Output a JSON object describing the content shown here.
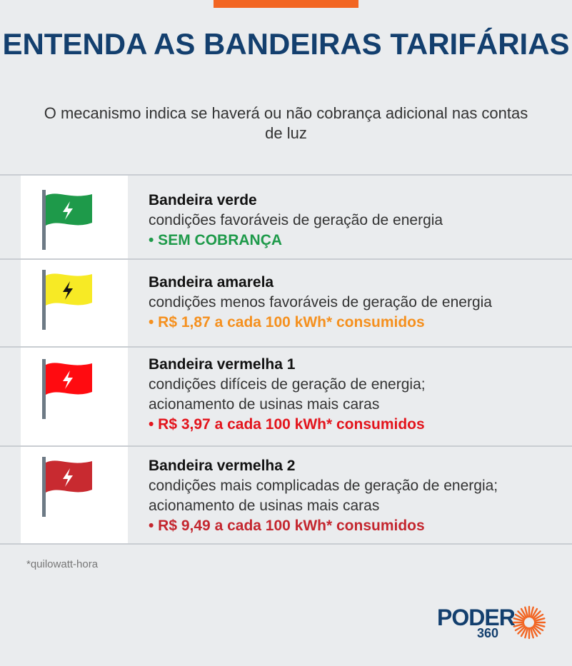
{
  "header": {
    "accent_color": "#f26522",
    "title": "ENTENDA AS BANDEIRAS TARIFÁRIAS",
    "subtitle": "O mecanismo indica se haverá ou não cobrança adicional nas contas de luz"
  },
  "rows": [
    {
      "name": "Bandeira verde",
      "description": "condições favoráveis de geração de energia",
      "cost": "• SEM COBRANÇA",
      "flag_color": "#1e9a4a",
      "bolt_color": "#ffffff",
      "cost_color": "#1e9a4a",
      "icon": "green-flag-icon"
    },
    {
      "name": "Bandeira amarela",
      "description": "condições menos favoráveis de geração de energia",
      "cost": "• R$ 1,87 a cada 100 kWh* consumidos",
      "flag_color": "#f7ea25",
      "bolt_color": "#111111",
      "cost_color": "#f5901e",
      "icon": "yellow-flag-icon"
    },
    {
      "name": "Bandeira vermelha 1",
      "description": "condições difíceis de geração de energia; acionamento de usinas mais caras",
      "cost": "• R$ 3,97 a cada 100 kWh* consumidos",
      "flag_color": "#ff0b10",
      "bolt_color": "#ffffff",
      "cost_color": "#e3141c",
      "icon": "red-flag-icon"
    },
    {
      "name": "Bandeira vermelha 2",
      "description": "condições mais complicadas de geração de energia; acionamento de usinas mais caras",
      "cost": "• R$ 9,49 a cada 100 kWh* consumidos",
      "flag_color": "#c82a30",
      "bolt_color": "#ffffff",
      "cost_color": "#c4262e",
      "icon": "dark-red-flag-icon"
    }
  ],
  "footnote": "*quilowatt-hora",
  "logo": {
    "word": "PODER",
    "number": "360",
    "brand_color": "#133f6e",
    "sun_color": "#f26522"
  }
}
